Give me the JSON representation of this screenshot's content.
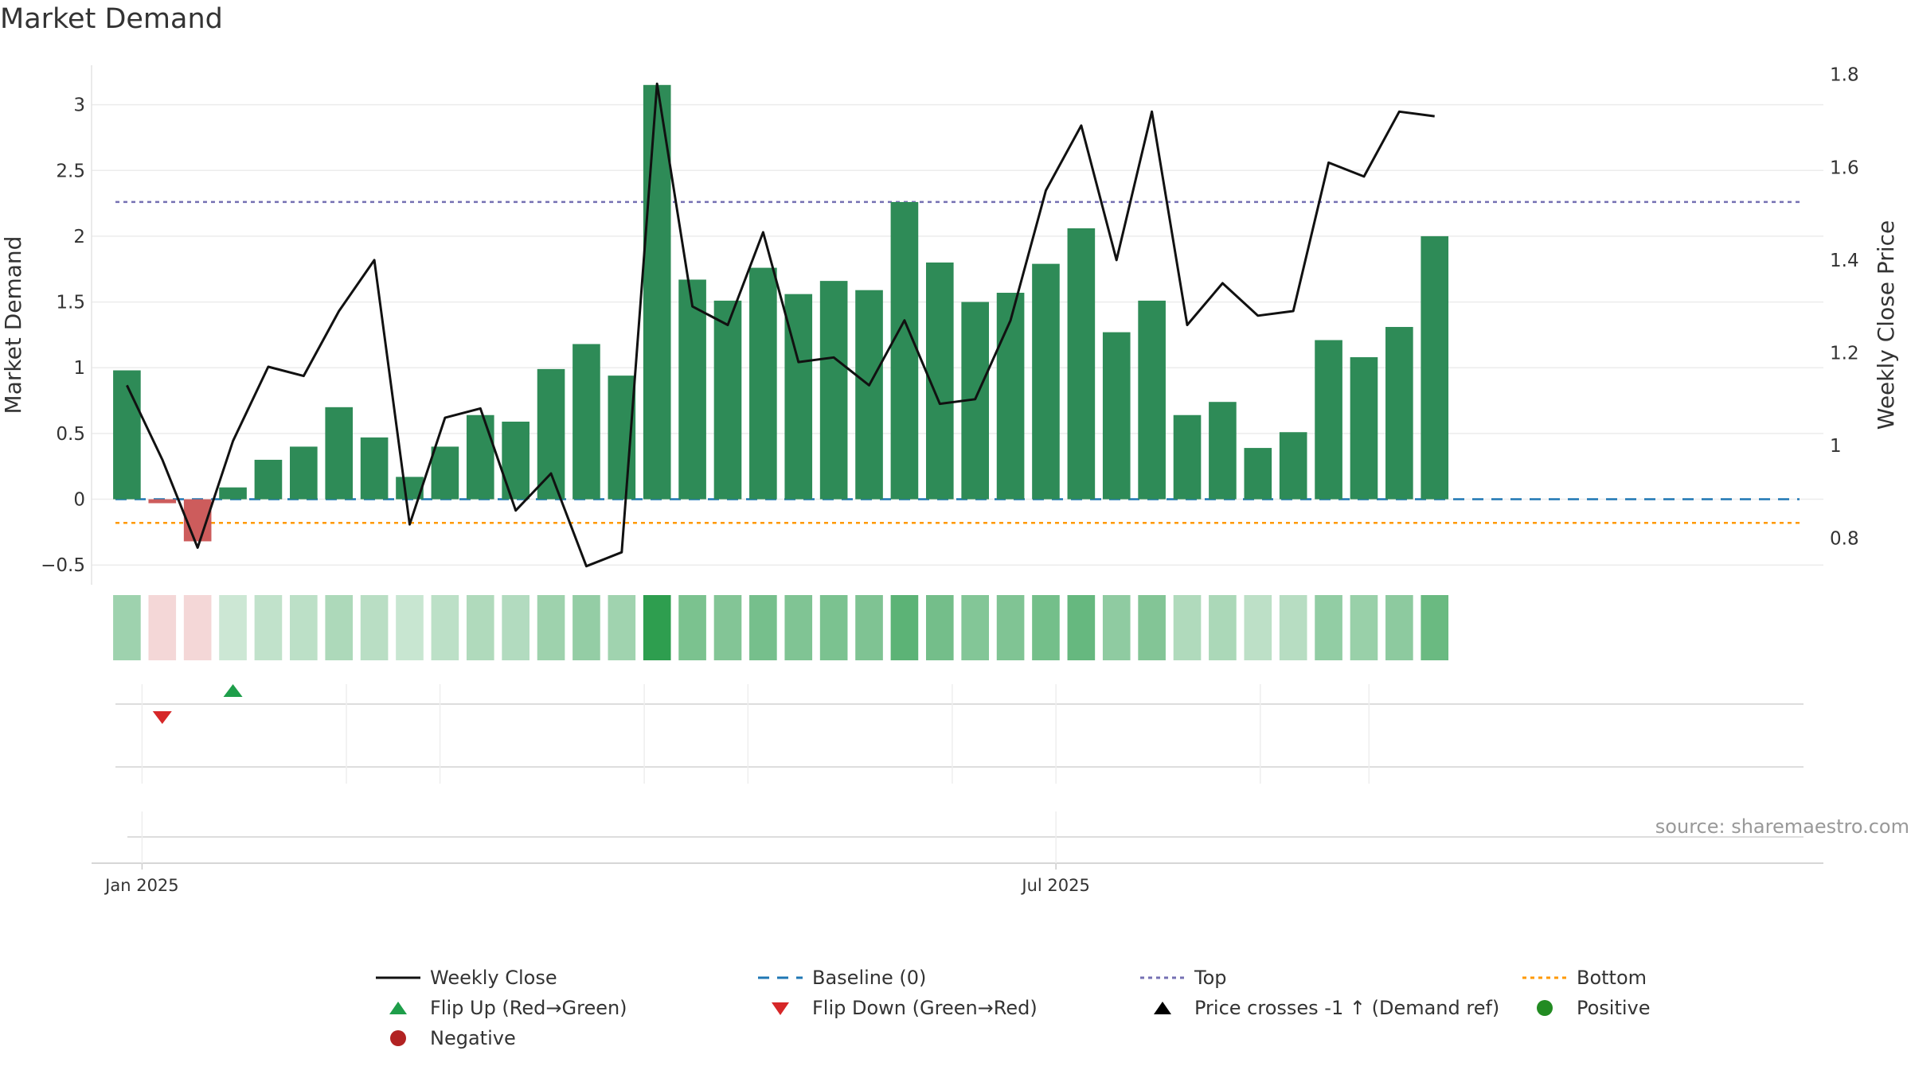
{
  "chart_data": {
    "type": "bar",
    "title": "Market Demand",
    "ylabel": "Market Demand",
    "y2label": "Weekly Close Price",
    "ylim": [
      -0.65,
      3.3
    ],
    "y2lim": [
      0.7,
      1.82
    ],
    "yticks": [
      -0.5,
      0,
      0.5,
      1,
      1.5,
      2,
      2.5,
      3
    ],
    "y2ticks": [
      0.8,
      1,
      1.2,
      1.4,
      1.6,
      1.8
    ],
    "ytick_labels": [
      "−0.5",
      "0",
      "0.5",
      "1",
      "1.5",
      "2",
      "2.5",
      "3"
    ],
    "y2tick_labels": [
      "0.8",
      "1",
      "1.2",
      "1.4",
      "1.6",
      "1.8"
    ],
    "x_start": "2024-12-22",
    "x_end": "2025-11-30",
    "xticks": [
      {
        "date": "2025-01-01",
        "label": "Jan 2025"
      },
      {
        "date": "2025-07-01",
        "label": "Jul 2025"
      }
    ],
    "dates": [
      "2024-12-29",
      "2025-01-05",
      "2025-01-12",
      "2025-01-19",
      "2025-01-26",
      "2025-02-02",
      "2025-02-09",
      "2025-02-16",
      "2025-02-23",
      "2025-03-02",
      "2025-03-09",
      "2025-03-16",
      "2025-03-23",
      "2025-03-30",
      "2025-04-06",
      "2025-04-13",
      "2025-04-20",
      "2025-04-27",
      "2025-05-04",
      "2025-05-11",
      "2025-05-18",
      "2025-05-25",
      "2025-06-01",
      "2025-06-08",
      "2025-06-15",
      "2025-06-22",
      "2025-06-29",
      "2025-07-06",
      "2025-07-13",
      "2025-07-20",
      "2025-07-27",
      "2025-08-03",
      "2025-08-10",
      "2025-08-17",
      "2025-08-24",
      "2025-08-31",
      "2025-09-07",
      "2025-09-14"
    ],
    "series": [
      {
        "name": "Market Demand",
        "kind": "bar",
        "axis": "left",
        "values": [
          0.98,
          -0.03,
          -0.32,
          0.09,
          0.3,
          0.4,
          0.7,
          0.47,
          0.17,
          0.4,
          0.64,
          0.59,
          0.99,
          1.18,
          0.94,
          3.15,
          1.67,
          1.51,
          1.76,
          1.56,
          1.66,
          1.59,
          2.26,
          1.8,
          1.5,
          1.57,
          1.79,
          2.06,
          1.27,
          1.51,
          0.64,
          0.74,
          0.39,
          0.51,
          1.21,
          1.08,
          1.31,
          2.0
        ]
      },
      {
        "name": "Weekly Close",
        "kind": "line",
        "axis": "right",
        "values": [
          1.13,
          0.97,
          0.78,
          1.01,
          1.17,
          1.15,
          1.29,
          1.4,
          0.83,
          1.06,
          1.08,
          0.86,
          0.94,
          0.74,
          0.77,
          1.78,
          1.3,
          1.26,
          1.46,
          1.18,
          1.19,
          1.13,
          1.27,
          1.09,
          1.1,
          1.27,
          1.55,
          1.69,
          1.4,
          1.72,
          1.26,
          1.35,
          1.28,
          1.29,
          1.61,
          1.58,
          1.72,
          1.71
        ]
      }
    ],
    "reference_lines": [
      {
        "name": "Baseline (0)",
        "value": 0,
        "color": "#1f77b4",
        "style": "dashed"
      },
      {
        "name": "Top",
        "value": 2.26,
        "color": "#7570b3",
        "style": "dotted"
      },
      {
        "name": "Bottom",
        "value": -0.18,
        "color": "#ff9900",
        "style": "dotted"
      }
    ],
    "flips": [
      {
        "type": "Flip Down (Green→Red)",
        "date": "2025-01-05"
      },
      {
        "type": "Flip Up (Red→Green)",
        "date": "2025-01-19"
      }
    ],
    "colors": {
      "positive_bar": "#2e8b57",
      "negative_bar": "#cd5c5c",
      "line": "#111111",
      "flip_up": "#1e9e4a",
      "flip_down": "#d62728",
      "positive_dot": "#228b22",
      "negative_dot": "#b22222",
      "heat_positive": "#2e9e4f",
      "heat_negative": "#d9787a"
    },
    "legend": [
      {
        "label": "Weekly Close",
        "icon": "line-solid",
        "color": "#111111"
      },
      {
        "label": "Baseline (0)",
        "icon": "line-dashed",
        "color": "#1f77b4"
      },
      {
        "label": "Top",
        "icon": "line-dotted",
        "color": "#7570b3"
      },
      {
        "label": "Bottom",
        "icon": "line-dotted",
        "color": "#ff9900"
      },
      {
        "label": "Flip Up (Red→Green)",
        "icon": "triangle-up",
        "color": "#1e9e4a"
      },
      {
        "label": "Flip Down (Green→Red)",
        "icon": "triangle-down",
        "color": "#d62728"
      },
      {
        "label": "Price crosses -1 ↑ (Demand ref)",
        "icon": "triangle-up",
        "color": "#000000"
      },
      {
        "label": "Positive",
        "icon": "circle",
        "color": "#228b22"
      },
      {
        "label": "Negative",
        "icon": "circle",
        "color": "#b22222"
      }
    ],
    "legend_position": "bottom",
    "grid": true
  },
  "source_note": "source: sharemaestro.com"
}
